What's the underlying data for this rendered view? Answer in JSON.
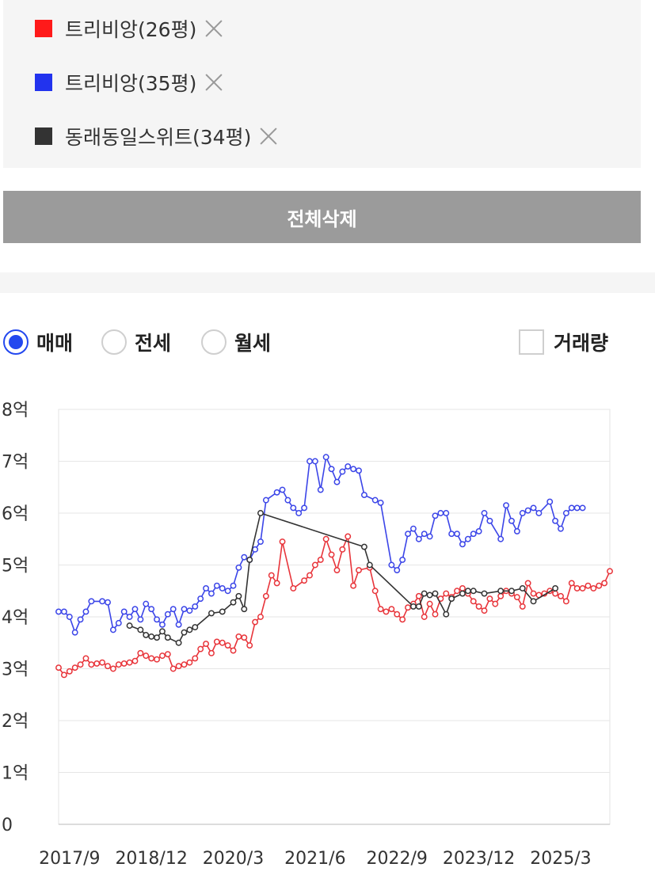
{
  "complexes": [
    {
      "label": "트리비앙(26평)",
      "color": "#ff1a1a"
    },
    {
      "label": "트리비앙(35평)",
      "color": "#2233ee"
    },
    {
      "label": "동래동일스위트(34평)",
      "color": "#333333"
    }
  ],
  "delete_all_label": "전체삭제",
  "trade_types": [
    {
      "label": "매매",
      "selected": true
    },
    {
      "label": "전세",
      "selected": false
    },
    {
      "label": "월세",
      "selected": false
    }
  ],
  "volume_label": "거래량",
  "chart_data": {
    "type": "line",
    "ylim": [
      0,
      8
    ],
    "xlim": [
      "2017-07",
      "2025-12"
    ],
    "y_ticks": [
      0,
      1,
      2,
      3,
      4,
      5,
      6,
      7,
      8
    ],
    "y_tick_labels": [
      "0",
      "1억",
      "2억",
      "3억",
      "4억",
      "5억",
      "6억",
      "7억",
      "8억"
    ],
    "x_ticks": [
      "2017-09",
      "2018-12",
      "2020-03",
      "2021-06",
      "2022-09",
      "2023-12",
      "2025-03"
    ],
    "x_tick_labels": [
      "2017/9",
      "2018/12",
      "2020/3",
      "2021/6",
      "2022/9",
      "2023/12",
      "2025/3"
    ],
    "grid": true,
    "series": [
      {
        "name": "트리비앙(26평)",
        "color": "#e8343a",
        "points": [
          [
            "2017-07",
            3.02
          ],
          [
            "2017-08",
            2.88
          ],
          [
            "2017-09",
            2.95
          ],
          [
            "2017-10",
            3.02
          ],
          [
            "2017-11",
            3.08
          ],
          [
            "2017-12",
            3.2
          ],
          [
            "2018-01",
            3.08
          ],
          [
            "2018-02",
            3.1
          ],
          [
            "2018-03",
            3.12
          ],
          [
            "2018-04",
            3.05
          ],
          [
            "2018-05",
            3.0
          ],
          [
            "2018-06",
            3.08
          ],
          [
            "2018-07",
            3.1
          ],
          [
            "2018-08",
            3.12
          ],
          [
            "2018-09",
            3.15
          ],
          [
            "2018-10",
            3.3
          ],
          [
            "2018-11",
            3.25
          ],
          [
            "2018-12",
            3.2
          ],
          [
            "2019-01",
            3.18
          ],
          [
            "2019-02",
            3.25
          ],
          [
            "2019-03",
            3.28
          ],
          [
            "2019-04",
            3.0
          ],
          [
            "2019-05",
            3.05
          ],
          [
            "2019-06",
            3.08
          ],
          [
            "2019-07",
            3.12
          ],
          [
            "2019-08",
            3.2
          ],
          [
            "2019-09",
            3.38
          ],
          [
            "2019-10",
            3.48
          ],
          [
            "2019-11",
            3.3
          ],
          [
            "2019-12",
            3.52
          ],
          [
            "2020-01",
            3.5
          ],
          [
            "2020-02",
            3.45
          ],
          [
            "2020-03",
            3.35
          ],
          [
            "2020-04",
            3.62
          ],
          [
            "2020-05",
            3.6
          ],
          [
            "2020-06",
            3.45
          ],
          [
            "2020-07",
            3.9
          ],
          [
            "2020-08",
            4.0
          ],
          [
            "2020-09",
            4.4
          ],
          [
            "2020-10",
            4.8
          ],
          [
            "2020-11",
            4.65
          ],
          [
            "2020-12",
            5.45
          ],
          [
            "2021-02",
            4.55
          ],
          [
            "2021-04",
            4.7
          ],
          [
            "2021-05",
            4.8
          ],
          [
            "2021-06",
            5.0
          ],
          [
            "2021-07",
            5.1
          ],
          [
            "2021-08",
            5.5
          ],
          [
            "2021-09",
            5.2
          ],
          [
            "2021-10",
            4.9
          ],
          [
            "2021-11",
            5.3
          ],
          [
            "2021-12",
            5.55
          ],
          [
            "2022-01",
            4.6
          ],
          [
            "2022-02",
            4.9
          ],
          [
            "2022-04",
            4.95
          ],
          [
            "2022-05",
            4.5
          ],
          [
            "2022-06",
            4.15
          ],
          [
            "2022-07",
            4.1
          ],
          [
            "2022-08",
            4.15
          ],
          [
            "2022-09",
            4.05
          ],
          [
            "2022-10",
            3.95
          ],
          [
            "2022-11",
            4.18
          ],
          [
            "2022-12",
            4.25
          ],
          [
            "2023-01",
            4.4
          ],
          [
            "2023-02",
            4.0
          ],
          [
            "2023-03",
            4.25
          ],
          [
            "2023-04",
            4.05
          ],
          [
            "2023-05",
            4.35
          ],
          [
            "2023-06",
            4.45
          ],
          [
            "2023-07",
            4.38
          ],
          [
            "2023-08",
            4.5
          ],
          [
            "2023-09",
            4.55
          ],
          [
            "2023-10",
            4.45
          ],
          [
            "2023-11",
            4.3
          ],
          [
            "2023-12",
            4.2
          ],
          [
            "2024-01",
            4.12
          ],
          [
            "2024-02",
            4.35
          ],
          [
            "2024-03",
            4.25
          ],
          [
            "2024-04",
            4.4
          ],
          [
            "2024-05",
            4.5
          ],
          [
            "2024-06",
            4.45
          ],
          [
            "2024-07",
            4.38
          ],
          [
            "2024-08",
            4.2
          ],
          [
            "2024-09",
            4.65
          ],
          [
            "2024-10",
            4.45
          ],
          [
            "2024-11",
            4.42
          ],
          [
            "2024-12",
            4.45
          ],
          [
            "2025-01",
            4.5
          ],
          [
            "2025-02",
            4.45
          ],
          [
            "2025-03",
            4.4
          ],
          [
            "2025-04",
            4.3
          ],
          [
            "2025-05",
            4.65
          ],
          [
            "2025-06",
            4.55
          ],
          [
            "2025-07",
            4.55
          ],
          [
            "2025-08",
            4.6
          ],
          [
            "2025-09",
            4.55
          ],
          [
            "2025-10",
            4.6
          ],
          [
            "2025-11",
            4.65
          ],
          [
            "2025-12",
            4.88
          ]
        ]
      },
      {
        "name": "트리비앙(35평)",
        "color": "#3b45e8",
        "points": [
          [
            "2017-07",
            4.1
          ],
          [
            "2017-08",
            4.1
          ],
          [
            "2017-09",
            4.0
          ],
          [
            "2017-10",
            3.7
          ],
          [
            "2017-11",
            3.95
          ],
          [
            "2017-12",
            4.1
          ],
          [
            "2018-01",
            4.3
          ],
          [
            "2018-03",
            4.3
          ],
          [
            "2018-04",
            4.28
          ],
          [
            "2018-05",
            3.75
          ],
          [
            "2018-06",
            3.88
          ],
          [
            "2018-07",
            4.1
          ],
          [
            "2018-08",
            4.0
          ],
          [
            "2018-09",
            4.15
          ],
          [
            "2018-10",
            3.95
          ],
          [
            "2018-11",
            4.25
          ],
          [
            "2018-12",
            4.15
          ],
          [
            "2019-01",
            3.95
          ],
          [
            "2019-02",
            3.85
          ],
          [
            "2019-03",
            4.05
          ],
          [
            "2019-04",
            4.15
          ],
          [
            "2019-05",
            3.85
          ],
          [
            "2019-06",
            4.15
          ],
          [
            "2019-07",
            4.12
          ],
          [
            "2019-08",
            4.2
          ],
          [
            "2019-09",
            4.35
          ],
          [
            "2019-10",
            4.55
          ],
          [
            "2019-11",
            4.45
          ],
          [
            "2019-12",
            4.6
          ],
          [
            "2020-01",
            4.55
          ],
          [
            "2020-02",
            4.5
          ],
          [
            "2020-03",
            4.6
          ],
          [
            "2020-04",
            4.95
          ],
          [
            "2020-05",
            5.15
          ],
          [
            "2020-06",
            5.1
          ],
          [
            "2020-07",
            5.3
          ],
          [
            "2020-08",
            5.45
          ],
          [
            "2020-09",
            6.25
          ],
          [
            "2020-11",
            6.4
          ],
          [
            "2020-12",
            6.45
          ],
          [
            "2021-01",
            6.25
          ],
          [
            "2021-02",
            6.1
          ],
          [
            "2021-03",
            6.0
          ],
          [
            "2021-04",
            6.1
          ],
          [
            "2021-05",
            7.0
          ],
          [
            "2021-06",
            7.0
          ],
          [
            "2021-07",
            6.45
          ],
          [
            "2021-08",
            7.08
          ],
          [
            "2021-09",
            6.85
          ],
          [
            "2021-10",
            6.6
          ],
          [
            "2021-11",
            6.8
          ],
          [
            "2021-12",
            6.9
          ],
          [
            "2022-01",
            6.85
          ],
          [
            "2022-02",
            6.82
          ],
          [
            "2022-03",
            6.35
          ],
          [
            "2022-05",
            6.25
          ],
          [
            "2022-06",
            6.2
          ],
          [
            "2022-08",
            5.0
          ],
          [
            "2022-09",
            4.9
          ],
          [
            "2022-10",
            5.1
          ],
          [
            "2022-11",
            5.6
          ],
          [
            "2022-12",
            5.7
          ],
          [
            "2023-01",
            5.5
          ],
          [
            "2023-02",
            5.6
          ],
          [
            "2023-03",
            5.55
          ],
          [
            "2023-04",
            5.95
          ],
          [
            "2023-05",
            6.0
          ],
          [
            "2023-06",
            6.0
          ],
          [
            "2023-07",
            5.6
          ],
          [
            "2023-08",
            5.6
          ],
          [
            "2023-09",
            5.4
          ],
          [
            "2023-10",
            5.5
          ],
          [
            "2023-11",
            5.6
          ],
          [
            "2023-12",
            5.65
          ],
          [
            "2024-01",
            6.0
          ],
          [
            "2024-02",
            5.85
          ],
          [
            "2024-04",
            5.5
          ],
          [
            "2024-05",
            6.15
          ],
          [
            "2024-06",
            5.85
          ],
          [
            "2024-07",
            5.65
          ],
          [
            "2024-08",
            6.0
          ],
          [
            "2024-09",
            6.05
          ],
          [
            "2024-10",
            6.1
          ],
          [
            "2024-11",
            6.0
          ],
          [
            "2025-01",
            6.22
          ],
          [
            "2025-02",
            5.85
          ],
          [
            "2025-03",
            5.7
          ],
          [
            "2025-04",
            6.0
          ],
          [
            "2025-05",
            6.1
          ],
          [
            "2025-06",
            6.1
          ],
          [
            "2025-07",
            6.1
          ]
        ]
      },
      {
        "name": "동래동일스위트(34평)",
        "color": "#333333",
        "points": [
          [
            "2018-08",
            3.83
          ],
          [
            "2018-10",
            3.75
          ],
          [
            "2018-11",
            3.65
          ],
          [
            "2018-12",
            3.62
          ],
          [
            "2019-01",
            3.6
          ],
          [
            "2019-02",
            3.72
          ],
          [
            "2019-03",
            3.6
          ],
          [
            "2019-05",
            3.5
          ],
          [
            "2019-06",
            3.7
          ],
          [
            "2019-07",
            3.75
          ],
          [
            "2019-08",
            3.8
          ],
          [
            "2019-11",
            4.07
          ],
          [
            "2020-01",
            4.1
          ],
          [
            "2020-03",
            4.28
          ],
          [
            "2020-04",
            4.4
          ],
          [
            "2020-05",
            4.15
          ],
          [
            "2020-06",
            5.1
          ],
          [
            "2020-08",
            6.0
          ],
          [
            "2022-03",
            5.35
          ],
          [
            "2022-04",
            5.0
          ],
          [
            "2022-12",
            4.2
          ],
          [
            "2023-01",
            4.2
          ],
          [
            "2023-02",
            4.45
          ],
          [
            "2023-03",
            4.42
          ],
          [
            "2023-04",
            4.45
          ],
          [
            "2023-06",
            4.05
          ],
          [
            "2023-07",
            4.35
          ],
          [
            "2023-09",
            4.45
          ],
          [
            "2023-10",
            4.5
          ],
          [
            "2023-11",
            4.5
          ],
          [
            "2024-01",
            4.45
          ],
          [
            "2024-04",
            4.5
          ],
          [
            "2024-06",
            4.5
          ],
          [
            "2024-08",
            4.55
          ],
          [
            "2024-10",
            4.3
          ],
          [
            "2025-02",
            4.55
          ]
        ]
      }
    ]
  }
}
